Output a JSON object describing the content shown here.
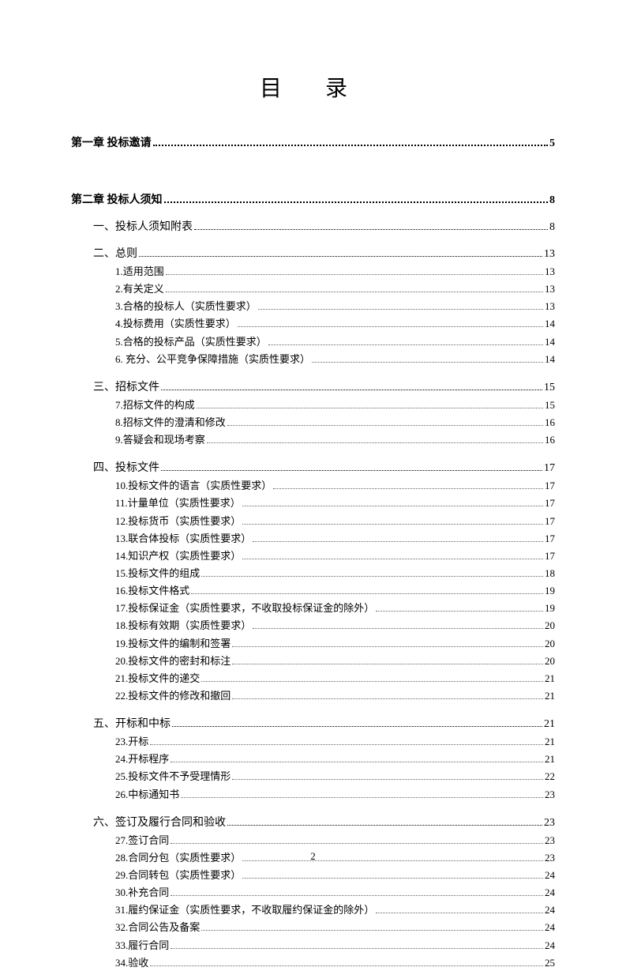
{
  "title": "目 录",
  "page_number": "2",
  "chapters": [
    {
      "label": "第一章  投标邀请",
      "page": "5"
    },
    {
      "label": "第二章  投标人须知",
      "page": "8"
    }
  ],
  "sections": [
    {
      "label": "一、投标人须知附表",
      "page": "8",
      "items": []
    },
    {
      "label": "二、总则",
      "page": "13",
      "items": [
        {
          "label": "1.适用范围",
          "page": "13"
        },
        {
          "label": "2.有关定义",
          "page": "13"
        },
        {
          "label": "3.合格的投标人（实质性要求）",
          "page": "13"
        },
        {
          "label": "4.投标费用（实质性要求）",
          "page": "14"
        },
        {
          "label": "5.合格的投标产品（实质性要求）",
          "page": "14"
        },
        {
          "label": "6. 充分、公平竞争保障措施（实质性要求）",
          "page": "14"
        }
      ]
    },
    {
      "label": "三、招标文件",
      "page": "15",
      "items": [
        {
          "label": "7.招标文件的构成",
          "page": "15"
        },
        {
          "label": "8.招标文件的澄清和修改",
          "page": "16"
        },
        {
          "label": "9.答疑会和现场考察",
          "page": "16"
        }
      ]
    },
    {
      "label": "四、投标文件",
      "page": "17",
      "items": [
        {
          "label": "10.投标文件的语言（实质性要求）",
          "page": "17"
        },
        {
          "label": "11.计量单位（实质性要求）",
          "page": "17"
        },
        {
          "label": "12.投标货币（实质性要求）",
          "page": "17"
        },
        {
          "label": "13.联合体投标（实质性要求）",
          "page": "17"
        },
        {
          "label": "14.知识产权（实质性要求）",
          "page": "17"
        },
        {
          "label": "15.投标文件的组成",
          "page": "18"
        },
        {
          "label": "16.投标文件格式",
          "page": "19"
        },
        {
          "label": "17.投标保证金（实质性要求，不收取投标保证金的除外）",
          "page": "19"
        },
        {
          "label": "18.投标有效期（实质性要求）",
          "page": "20"
        },
        {
          "label": "19.投标文件的编制和签署",
          "page": "20"
        },
        {
          "label": "20.投标文件的密封和标注",
          "page": "20"
        },
        {
          "label": "21.投标文件的递交",
          "page": "21"
        },
        {
          "label": "22.投标文件的修改和撤回",
          "page": "21"
        }
      ]
    },
    {
      "label": "五、开标和中标",
      "page": "21",
      "items": [
        {
          "label": "23.开标",
          "page": "21"
        },
        {
          "label": "24.开标程序",
          "page": "21"
        },
        {
          "label": "25.投标文件不予受理情形",
          "page": "22"
        },
        {
          "label": "26.中标通知书",
          "page": "23"
        }
      ]
    },
    {
      "label": "六、签订及履行合同和验收",
      "page": "23",
      "items": [
        {
          "label": "27.签订合同",
          "page": "23"
        },
        {
          "label": "28.合同分包（实质性要求）",
          "page": "23"
        },
        {
          "label": "29.合同转包（实质性要求）",
          "page": "24"
        },
        {
          "label": "30.补充合同",
          "page": "24"
        },
        {
          "label": "31.履约保证金（实质性要求，不收取履约保证金的除外）",
          "page": "24"
        },
        {
          "label": "32.合同公告及备案",
          "page": "24"
        },
        {
          "label": "33.履行合同",
          "page": "24"
        },
        {
          "label": "34.验收",
          "page": "25"
        }
      ]
    }
  ]
}
